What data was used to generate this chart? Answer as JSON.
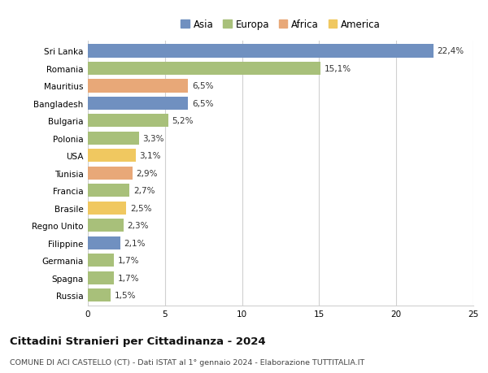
{
  "categories": [
    "Sri Lanka",
    "Romania",
    "Mauritius",
    "Bangladesh",
    "Bulgaria",
    "Polonia",
    "USA",
    "Tunisia",
    "Francia",
    "Brasile",
    "Regno Unito",
    "Filippine",
    "Germania",
    "Spagna",
    "Russia"
  ],
  "values": [
    22.4,
    15.1,
    6.5,
    6.5,
    5.2,
    3.3,
    3.1,
    2.9,
    2.7,
    2.5,
    2.3,
    2.1,
    1.7,
    1.7,
    1.5
  ],
  "labels": [
    "22,4%",
    "15,1%",
    "6,5%",
    "6,5%",
    "5,2%",
    "3,3%",
    "3,1%",
    "2,9%",
    "2,7%",
    "2,5%",
    "2,3%",
    "2,1%",
    "1,7%",
    "1,7%",
    "1,5%"
  ],
  "continents": [
    "Asia",
    "Europa",
    "Africa",
    "Asia",
    "Europa",
    "Europa",
    "America",
    "Africa",
    "Europa",
    "America",
    "Europa",
    "Asia",
    "Europa",
    "Europa",
    "Europa"
  ],
  "colors": {
    "Asia": "#7090c0",
    "Europa": "#a8c07a",
    "Africa": "#e8a878",
    "America": "#f0c860"
  },
  "legend_order": [
    "Asia",
    "Europa",
    "Africa",
    "America"
  ],
  "xlim": [
    0,
    25
  ],
  "xticks": [
    0,
    5,
    10,
    15,
    20,
    25
  ],
  "title_main": "Cittadini Stranieri per Cittadinanza - 2024",
  "title_sub": "COMUNE DI ACI CASTELLO (CT) - Dati ISTAT al 1° gennaio 2024 - Elaborazione TUTTITALIA.IT",
  "background_color": "#ffffff",
  "grid_color": "#d0d0d0",
  "bar_height": 0.75,
  "label_fontsize": 7.5,
  "tick_fontsize": 7.5,
  "legend_fontsize": 8.5,
  "title_fontsize": 9.5,
  "sub_fontsize": 6.8
}
